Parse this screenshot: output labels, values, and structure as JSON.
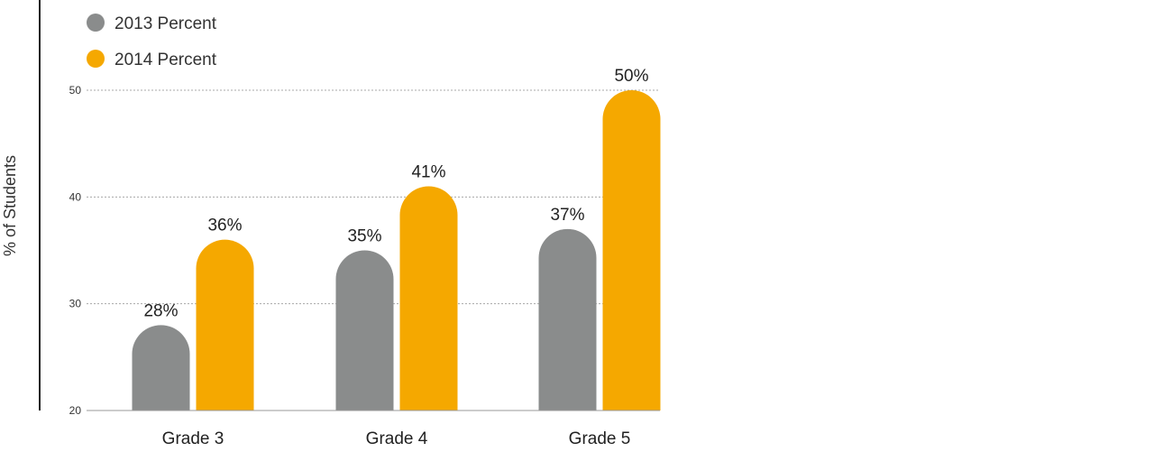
{
  "chart_data": {
    "type": "bar",
    "categories": [
      "Grade 3",
      "Grade 4",
      "Grade 5"
    ],
    "series": [
      {
        "name": "2013 Percent",
        "values": [
          28,
          35,
          37
        ],
        "labels": [
          "28%",
          "35%",
          "37%"
        ],
        "color": "#8a8c8c"
      },
      {
        "name": "2014 Percent",
        "values": [
          36,
          41,
          50
        ],
        "labels": [
          "36%",
          "41%",
          "50%"
        ],
        "color": "#f5a800"
      }
    ],
    "yticks": [
      "20",
      "30",
      "40",
      "50"
    ],
    "ylim": [
      20,
      50
    ],
    "ylabel": "% of Students",
    "legend": "top-left",
    "grid": true
  }
}
